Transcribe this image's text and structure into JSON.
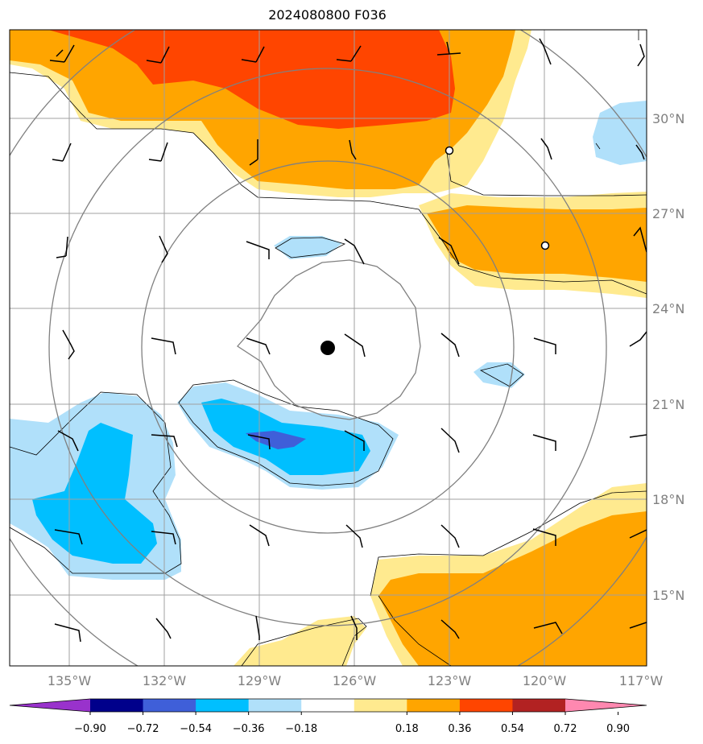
{
  "title": "2024080800 F036",
  "lon_labels": [
    "135°W",
    "132°W",
    "129°W",
    "126°W",
    "123°W",
    "120°W",
    "117°W"
  ],
  "lat_labels": [
    "30°N",
    "27°N",
    "24°N",
    "21°N",
    "18°N",
    "15°N"
  ],
  "colorbar": {
    "tick_labels": [
      "−0.90",
      "−0.72",
      "−0.54",
      "−0.36",
      "−0.18",
      "0.18",
      "0.36",
      "0.54",
      "0.72",
      "0.90"
    ],
    "colors": [
      "#9932cc",
      "#00008b",
      "#3f5fd9",
      "#00bfff",
      "#b0e0fa",
      "#ffffff",
      "#ffea8f",
      "#ffa500",
      "#ff4500",
      "#b22222",
      "#ff88b0"
    ]
  },
  "storm_center": {
    "lon": "126.9°W",
    "lat": "22.8°N"
  }
}
